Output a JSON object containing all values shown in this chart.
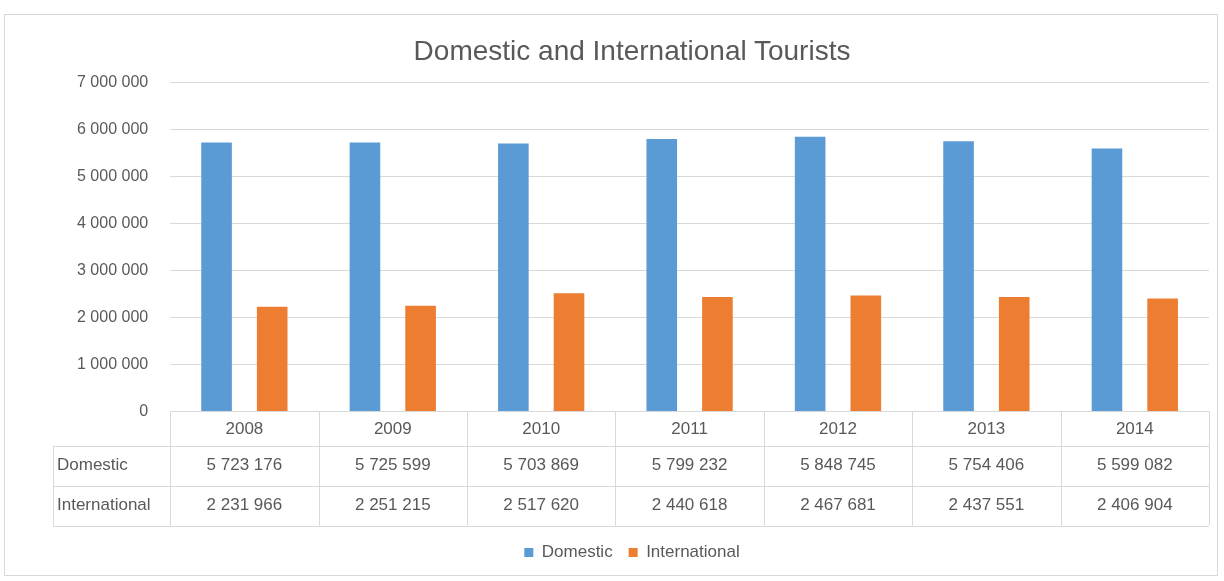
{
  "chart_data": {
    "type": "bar",
    "title": "Domestic and International Tourists",
    "categories": [
      "2008",
      "2009",
      "2010",
      "2011",
      "2012",
      "2013",
      "2014"
    ],
    "series": [
      {
        "name": "Domestic",
        "color": "#5b9bd5",
        "values": [
          5723176,
          5725599,
          5703869,
          5799232,
          5848745,
          5754406,
          5599082
        ],
        "value_labels": [
          "5 723 176",
          "5 725 599",
          "5 703 869",
          "5 799 232",
          "5 848 745",
          "5 754 406",
          "5 599 082"
        ]
      },
      {
        "name": "International",
        "color": "#ed7d31",
        "values": [
          2231966,
          2251215,
          2517620,
          2440618,
          2467681,
          2437551,
          2406904
        ],
        "value_labels": [
          "2 231 966",
          "2 251 215",
          "2 517 620",
          "2 440 618",
          "2 467 681",
          "2 437 551",
          "2 406 904"
        ]
      }
    ],
    "ylim": [
      0,
      7000000
    ],
    "yticks": [
      {
        "value": 0,
        "label": "0"
      },
      {
        "value": 1000000,
        "label": "1 000 000"
      },
      {
        "value": 2000000,
        "label": "2 000 000"
      },
      {
        "value": 3000000,
        "label": "3 000 000"
      },
      {
        "value": 4000000,
        "label": "4 000 000"
      },
      {
        "value": 5000000,
        "label": "5 000 000"
      },
      {
        "value": 6000000,
        "label": "6 000 000"
      },
      {
        "value": 7000000,
        "label": "7 000 000"
      }
    ],
    "grid": "y",
    "legend": "bottom"
  }
}
